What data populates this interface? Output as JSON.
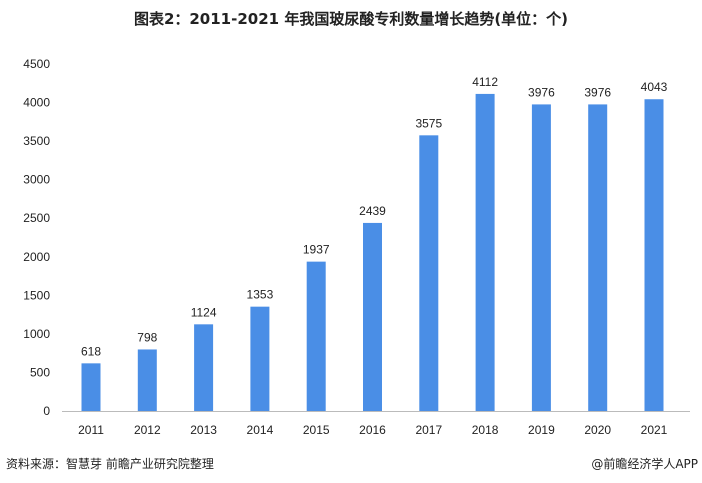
{
  "title": "图表2：2011-2021 年我国玻尿酸专利数量增长趋势(单位：个)",
  "footer": {
    "source": "资料来源：智慧芽 前瞻产业研究院整理",
    "brand": "@前瞻经济学人APP"
  },
  "chart_data": {
    "type": "bar",
    "title": "图表2：2011-2021 年我国玻尿酸专利数量增长趋势(单位：个)",
    "categories": [
      "2011",
      "2012",
      "2013",
      "2014",
      "2015",
      "2016",
      "2017",
      "2018",
      "2019",
      "2020",
      "2021"
    ],
    "values": [
      618,
      798,
      1124,
      1353,
      1937,
      2439,
      3575,
      4112,
      3976,
      3976,
      4043
    ],
    "yticks": [
      0,
      500,
      1000,
      1500,
      2000,
      2500,
      3000,
      3500,
      4000,
      4500
    ],
    "ylim": [
      0,
      4500
    ],
    "xlabel": "",
    "ylabel": "",
    "grid": false,
    "bar_color": "#4a8ee6"
  }
}
